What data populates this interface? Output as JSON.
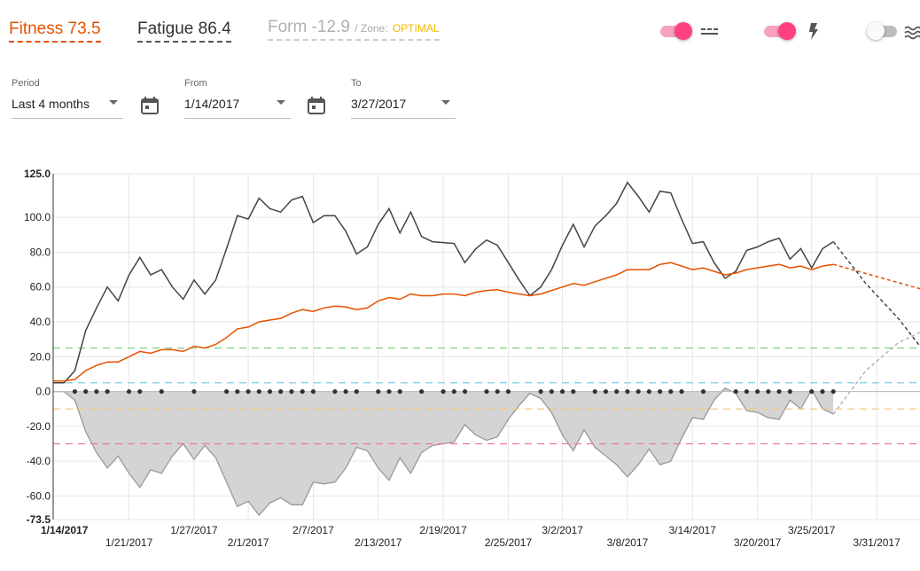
{
  "header": {
    "fitness_label": "Fitness",
    "fitness_value": "73.5",
    "fitness_color": "#e65100",
    "fatigue_label": "Fatigue",
    "fatigue_value": "86.4",
    "fatigue_color": "#333333",
    "form_label": "Form",
    "form_value": "-12.9",
    "zone_label": "/ Zone:",
    "zone_value": "OPTIMAL",
    "zone_color": "#f5b800",
    "form_color": "#b0b0b0"
  },
  "toggles": [
    {
      "name": "zones-toggle",
      "on": true,
      "icon": "dashed-lines-icon"
    },
    {
      "name": "activities-toggle",
      "on": true,
      "icon": "lightning-bolt-icon"
    },
    {
      "name": "ramp-toggle",
      "on": false,
      "icon": "waves-icon"
    }
  ],
  "controls": {
    "period_label": "Period",
    "period_value": "Last 4 months",
    "from_label": "From",
    "from_value": "1/14/2017",
    "to_label": "To",
    "to_value": "3/27/2017"
  },
  "chart_data": {
    "type": "line",
    "y_range": [
      -73.5,
      125.0
    ],
    "y_ticks": [
      "125.0",
      "100.0",
      "80.0",
      "60.0",
      "40.0",
      "20.0",
      "0.0",
      "-20.0",
      "-40.0",
      "-60.0",
      "-73.5"
    ],
    "x_range_days": [
      0,
      80
    ],
    "x_ticks": [
      {
        "day": 0,
        "label": "1/14/2017",
        "bold": true,
        "row": 0
      },
      {
        "day": 7,
        "label": "1/21/2017",
        "row": 1
      },
      {
        "day": 13,
        "label": "1/27/2017",
        "row": 0
      },
      {
        "day": 18,
        "label": "2/1/2017",
        "row": 1
      },
      {
        "day": 24,
        "label": "2/7/2017",
        "row": 0
      },
      {
        "day": 30,
        "label": "2/13/2017",
        "row": 1
      },
      {
        "day": 36,
        "label": "2/19/2017",
        "row": 0
      },
      {
        "day": 42,
        "label": "2/25/2017",
        "row": 1
      },
      {
        "day": 47,
        "label": "3/2/2017",
        "row": 0
      },
      {
        "day": 53,
        "label": "3/8/2017",
        "row": 1
      },
      {
        "day": 59,
        "label": "3/14/2017",
        "row": 0
      },
      {
        "day": 65,
        "label": "3/20/2017",
        "row": 1
      },
      {
        "day": 70,
        "label": "3/25/2017",
        "row": 0
      },
      {
        "day": 76,
        "label": "3/31/2017",
        "row": 1
      }
    ],
    "zone_lines": [
      {
        "y": 25,
        "color": "#7ed07e"
      },
      {
        "y": 5,
        "color": "#7ccbe8"
      },
      {
        "y": -10,
        "color": "#f5c77a"
      },
      {
        "y": -30,
        "color": "#ef7a8a"
      }
    ],
    "series": [
      {
        "key": "fatigue",
        "color": "#444444",
        "values": [
          [
            0,
            5
          ],
          [
            1,
            5
          ],
          [
            2,
            12
          ],
          [
            3,
            35
          ],
          [
            4,
            48
          ],
          [
            5,
            60
          ],
          [
            6,
            52
          ],
          [
            7,
            67
          ],
          [
            8,
            77
          ],
          [
            9,
            67
          ],
          [
            10,
            70
          ],
          [
            11,
            60
          ],
          [
            12,
            53
          ],
          [
            13,
            64
          ],
          [
            14,
            56
          ],
          [
            15,
            64
          ],
          [
            16,
            82
          ],
          [
            17,
            101
          ],
          [
            18,
            99
          ],
          [
            19,
            111
          ],
          [
            20,
            105
          ],
          [
            21,
            103
          ],
          [
            22,
            110
          ],
          [
            23,
            112
          ],
          [
            24,
            97
          ],
          [
            25,
            101
          ],
          [
            26,
            101
          ],
          [
            27,
            92
          ],
          [
            28,
            79
          ],
          [
            29,
            83
          ],
          [
            30,
            96
          ],
          [
            31,
            105
          ],
          [
            32,
            91
          ],
          [
            33,
            103
          ],
          [
            34,
            89
          ],
          [
            35,
            86
          ],
          [
            36,
            85.5
          ],
          [
            37,
            85
          ],
          [
            38,
            74
          ],
          [
            39,
            82
          ],
          [
            40,
            87
          ],
          [
            41,
            84
          ],
          [
            42,
            74
          ],
          [
            43,
            64
          ],
          [
            44,
            55
          ],
          [
            45,
            60
          ],
          [
            46,
            70
          ],
          [
            47,
            84
          ],
          [
            48,
            96
          ],
          [
            49,
            83
          ],
          [
            50,
            95
          ],
          [
            51,
            101
          ],
          [
            52,
            108
          ],
          [
            53,
            120
          ],
          [
            54,
            112
          ],
          [
            55,
            103
          ],
          [
            56,
            115
          ],
          [
            57,
            114
          ],
          [
            58,
            99
          ],
          [
            59,
            85
          ],
          [
            60,
            86
          ],
          [
            61,
            74
          ],
          [
            62,
            65
          ],
          [
            63,
            69
          ],
          [
            64,
            81
          ],
          [
            65,
            83
          ],
          [
            66,
            86
          ],
          [
            67,
            88
          ],
          [
            68,
            76
          ],
          [
            69,
            82
          ],
          [
            70,
            71
          ],
          [
            71,
            82
          ],
          [
            72,
            86
          ]
        ],
        "projection": [
          [
            72,
            86
          ],
          [
            75,
            62
          ],
          [
            78,
            42
          ],
          [
            80,
            26
          ]
        ]
      },
      {
        "key": "fitness",
        "color": "#e65100",
        "values": [
          [
            0,
            6
          ],
          [
            1,
            6
          ],
          [
            2,
            7
          ],
          [
            3,
            12
          ],
          [
            4,
            15
          ],
          [
            5,
            17
          ],
          [
            6,
            17
          ],
          [
            7,
            20
          ],
          [
            8,
            23
          ],
          [
            9,
            22
          ],
          [
            10,
            24
          ],
          [
            11,
            24
          ],
          [
            12,
            23
          ],
          [
            13,
            26
          ],
          [
            14,
            25
          ],
          [
            15,
            27
          ],
          [
            16,
            31
          ],
          [
            17,
            36
          ],
          [
            18,
            37
          ],
          [
            19,
            40
          ],
          [
            20,
            41
          ],
          [
            21,
            42
          ],
          [
            22,
            45
          ],
          [
            23,
            47
          ],
          [
            24,
            46
          ],
          [
            25,
            48
          ],
          [
            26,
            49
          ],
          [
            27,
            48.5
          ],
          [
            28,
            47
          ],
          [
            29,
            48
          ],
          [
            30,
            52
          ],
          [
            31,
            54
          ],
          [
            32,
            53
          ],
          [
            33,
            56
          ],
          [
            34,
            55
          ],
          [
            35,
            55
          ],
          [
            36,
            56
          ],
          [
            37,
            56
          ],
          [
            38,
            55
          ],
          [
            39,
            57
          ],
          [
            40,
            58
          ],
          [
            41,
            58.5
          ],
          [
            42,
            57
          ],
          [
            43,
            56
          ],
          [
            44,
            55
          ],
          [
            45,
            56
          ],
          [
            46,
            58
          ],
          [
            47,
            60
          ],
          [
            48,
            62
          ],
          [
            49,
            61
          ],
          [
            50,
            63
          ],
          [
            51,
            65
          ],
          [
            52,
            67
          ],
          [
            53,
            70
          ],
          [
            54,
            70
          ],
          [
            55,
            70
          ],
          [
            56,
            73
          ],
          [
            57,
            74
          ],
          [
            58,
            72
          ],
          [
            59,
            70
          ],
          [
            60,
            71
          ],
          [
            61,
            69
          ],
          [
            62,
            67
          ],
          [
            63,
            68
          ],
          [
            64,
            70
          ],
          [
            65,
            71
          ],
          [
            66,
            72
          ],
          [
            67,
            73
          ],
          [
            68,
            71
          ],
          [
            69,
            72
          ],
          [
            70,
            70
          ],
          [
            71,
            72
          ],
          [
            72,
            73
          ]
        ],
        "projection": [
          [
            72,
            73
          ],
          [
            76,
            66
          ],
          [
            80,
            59
          ]
        ]
      },
      {
        "key": "form",
        "color": "#999999",
        "fill": "#d4d4d4",
        "values": [
          [
            0,
            0
          ],
          [
            1,
            0
          ],
          [
            2,
            -5
          ],
          [
            3,
            -23
          ],
          [
            4,
            -35
          ],
          [
            5,
            -44
          ],
          [
            6,
            -37
          ],
          [
            7,
            -47
          ],
          [
            8,
            -55
          ],
          [
            9,
            -45
          ],
          [
            10,
            -47
          ],
          [
            11,
            -37
          ],
          [
            12,
            -30
          ],
          [
            13,
            -39
          ],
          [
            14,
            -31
          ],
          [
            15,
            -38
          ],
          [
            16,
            -52
          ],
          [
            17,
            -66
          ],
          [
            18,
            -63
          ],
          [
            19,
            -71
          ],
          [
            20,
            -64
          ],
          [
            21,
            -61
          ],
          [
            22,
            -65
          ],
          [
            23,
            -65
          ],
          [
            24,
            -52
          ],
          [
            25,
            -53
          ],
          [
            26,
            -52
          ],
          [
            27,
            -44
          ],
          [
            28,
            -32
          ],
          [
            29,
            -34
          ],
          [
            30,
            -44
          ],
          [
            31,
            -51
          ],
          [
            32,
            -38
          ],
          [
            33,
            -47
          ],
          [
            34,
            -35
          ],
          [
            35,
            -31
          ],
          [
            36,
            -30
          ],
          [
            37,
            -29
          ],
          [
            38,
            -19
          ],
          [
            39,
            -25
          ],
          [
            40,
            -28
          ],
          [
            41,
            -26
          ],
          [
            42,
            -16
          ],
          [
            43,
            -8
          ],
          [
            44,
            -1
          ],
          [
            45,
            -4
          ],
          [
            46,
            -12
          ],
          [
            47,
            -25
          ],
          [
            48,
            -34
          ],
          [
            49,
            -22
          ],
          [
            50,
            -32
          ],
          [
            51,
            -37
          ],
          [
            52,
            -42
          ],
          [
            53,
            -49
          ],
          [
            54,
            -42
          ],
          [
            55,
            -33
          ],
          [
            56,
            -42
          ],
          [
            57,
            -40
          ],
          [
            58,
            -27
          ],
          [
            59,
            -15
          ],
          [
            60,
            -16
          ],
          [
            61,
            -5
          ],
          [
            62,
            2
          ],
          [
            63,
            -1
          ],
          [
            64,
            -11
          ],
          [
            65,
            -12
          ],
          [
            66,
            -15
          ],
          [
            67,
            -16
          ],
          [
            68,
            -5
          ],
          [
            69,
            -10
          ],
          [
            70,
            1
          ],
          [
            71,
            -10
          ],
          [
            72,
            -13
          ]
        ],
        "projection": [
          [
            72,
            -13
          ],
          [
            75,
            12
          ],
          [
            78,
            28
          ],
          [
            80,
            34
          ]
        ]
      }
    ],
    "activity_days": [
      2,
      3,
      4,
      5,
      7,
      8,
      10,
      13,
      16,
      17,
      18,
      19,
      20,
      21,
      22,
      23,
      24,
      26,
      27,
      28,
      30,
      31,
      32,
      34,
      36,
      37,
      38,
      40,
      41,
      42,
      45,
      46,
      47,
      48,
      50,
      51,
      52,
      53,
      54,
      55,
      56,
      57,
      58,
      60,
      63,
      64,
      65,
      66,
      67,
      68,
      70,
      71,
      72
    ]
  }
}
